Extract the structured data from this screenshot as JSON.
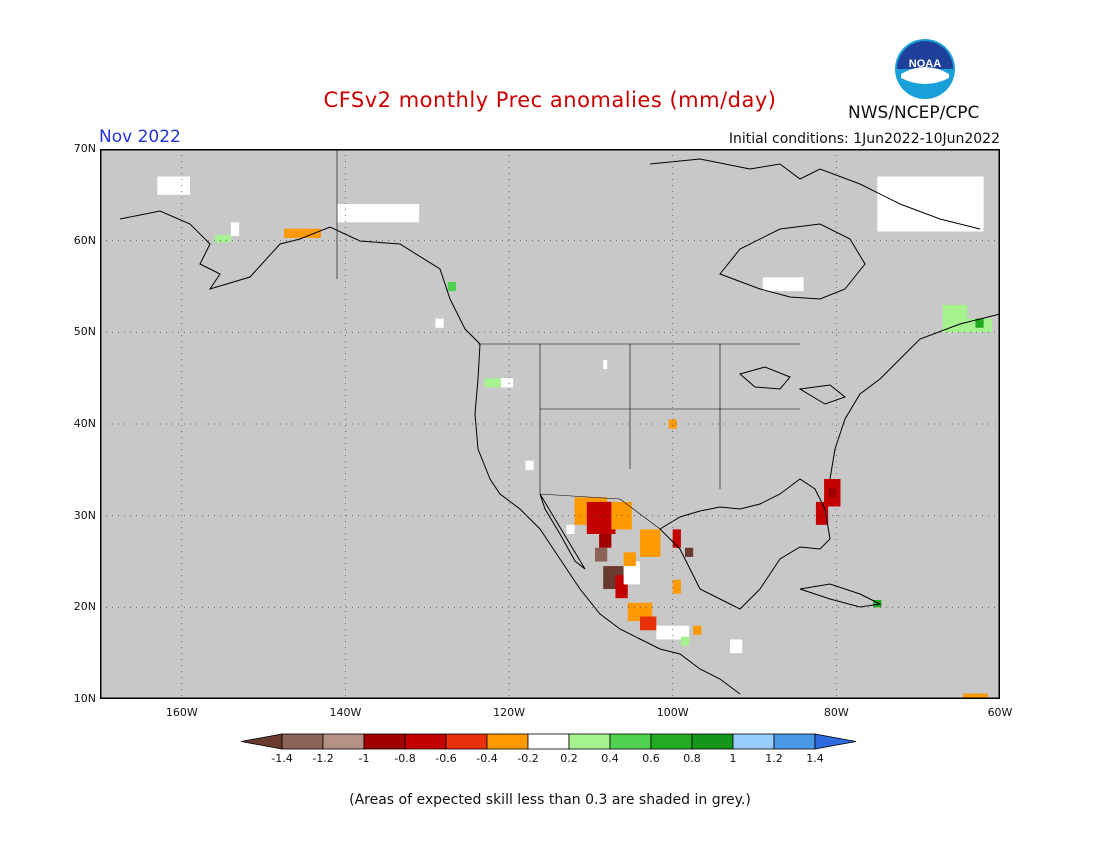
{
  "title": "CFSv2 monthly Prec anomalies (mm/day)",
  "period": "Nov 2022",
  "initial_conditions": "Initial conditions: 1Jun2022-10Jun2022",
  "agency": "NWS/NCEP/CPC",
  "logo": {
    "text": "NOAA",
    "icon": "noaa-logo-icon",
    "colors": {
      "ring": "#1aa0d8",
      "center": "#1e3f9a"
    }
  },
  "footnote": "(Areas of expected skill less than 0.3 are shaded in grey.)",
  "map": {
    "extent": {
      "lon": [
        -170,
        -60
      ],
      "lat": [
        10,
        70
      ]
    },
    "background": "#c8c8c8",
    "lat_labels": [
      {
        "value": 70,
        "text": "70N"
      },
      {
        "value": 60,
        "text": "60N"
      },
      {
        "value": 50,
        "text": "50N"
      },
      {
        "value": 40,
        "text": "40N"
      },
      {
        "value": 30,
        "text": "30N"
      },
      {
        "value": 20,
        "text": "20N"
      },
      {
        "value": 10,
        "text": "10N"
      }
    ],
    "lon_labels": [
      {
        "value": -160,
        "text": "160W"
      },
      {
        "value": -140,
        "text": "140W"
      },
      {
        "value": -120,
        "text": "120W"
      },
      {
        "value": -100,
        "text": "100W"
      },
      {
        "value": -80,
        "text": "80W"
      },
      {
        "value": -60,
        "text": "60W"
      }
    ]
  },
  "colorbar": {
    "colors": [
      "#6b3a2e",
      "#8c6356",
      "#b39285",
      "#a00000",
      "#c40000",
      "#e8300a",
      "#ff9900",
      "#ffffff",
      "#a6f28f",
      "#50d250",
      "#23aa23",
      "#15961b",
      "#99ccff",
      "#4a98e8",
      "#2f6be0"
    ],
    "labels": [
      "-1.4",
      "-1.2",
      "-1",
      "-0.8",
      "-0.6",
      "-0.4",
      "-0.2",
      "0.2",
      "0.4",
      "0.6",
      "0.8",
      "1",
      "1.2",
      "1.4"
    ]
  },
  "anomalies": [
    {
      "lon": [
        -112,
        -108
      ],
      "lat": [
        29,
        32
      ],
      "color": "#ff9900"
    },
    {
      "lon": [
        -110.5,
        -107
      ],
      "lat": [
        28,
        31.5
      ],
      "color": "#c40000"
    },
    {
      "lon": [
        -109,
        -107.5
      ],
      "lat": [
        26.5,
        28
      ],
      "color": "#a00000"
    },
    {
      "lon": [
        -109.5,
        -108
      ],
      "lat": [
        25,
        26.5
      ],
      "color": "#8c6356"
    },
    {
      "lon": [
        -107.5,
        -105
      ],
      "lat": [
        28.5,
        31.5
      ],
      "color": "#ff9900"
    },
    {
      "lon": [
        -108.5,
        -106
      ],
      "lat": [
        22,
        24.5
      ],
      "color": "#6b3a2e"
    },
    {
      "lon": [
        -107,
        -105.5
      ],
      "lat": [
        21,
        23.5
      ],
      "color": "#c40000"
    },
    {
      "lon": [
        -106,
        -104
      ],
      "lat": [
        22.5,
        25
      ],
      "color": "#ffffff"
    },
    {
      "lon": [
        -106,
        -104.5
      ],
      "lat": [
        24.5,
        26
      ],
      "color": "#ff9900"
    },
    {
      "lon": [
        -104,
        -101.5
      ],
      "lat": [
        25.5,
        28.5
      ],
      "color": "#ff9900"
    },
    {
      "lon": [
        -100,
        -99
      ],
      "lat": [
        26.5,
        28.5
      ],
      "color": "#c40000"
    },
    {
      "lon": [
        -98.5,
        -97.5
      ],
      "lat": [
        25.5,
        26.5
      ],
      "color": "#6b3a2e"
    },
    {
      "lon": [
        -100,
        -99
      ],
      "lat": [
        21.5,
        23
      ],
      "color": "#ff9900"
    },
    {
      "lon": [
        -105.5,
        -102.5
      ],
      "lat": [
        18.5,
        20.5
      ],
      "color": "#ff9900"
    },
    {
      "lon": [
        -104,
        -102
      ],
      "lat": [
        17.5,
        19
      ],
      "color": "#e8300a"
    },
    {
      "lon": [
        -102,
        -98
      ],
      "lat": [
        16.5,
        18
      ],
      "color": "#ffffff"
    },
    {
      "lon": [
        -97.5,
        -96.5
      ],
      "lat": [
        17,
        18
      ],
      "color": "#ff9900"
    },
    {
      "lon": [
        -81.5,
        -79.5
      ],
      "lat": [
        31,
        34
      ],
      "color": "#c40000"
    },
    {
      "lon": [
        -82.5,
        -81
      ],
      "lat": [
        29,
        31.5
      ],
      "color": "#c40000"
    },
    {
      "lon": [
        -81,
        -80
      ],
      "lat": [
        32,
        33
      ],
      "color": "#a00000"
    },
    {
      "lon": [
        -100.5,
        -99.5
      ],
      "lat": [
        39.5,
        40.5
      ],
      "color": "#ff9900"
    },
    {
      "lon": [
        -147.5,
        -143
      ],
      "lat": [
        60.3,
        61.3
      ],
      "color": "#ff9900"
    },
    {
      "lon": [
        -156,
        -154
      ],
      "lat": [
        59.8,
        60.6
      ],
      "color": "#a6f28f"
    },
    {
      "lon": [
        -123,
        -121
      ],
      "lat": [
        44,
        45
      ],
      "color": "#a6f28f"
    },
    {
      "lon": [
        -121,
        -119.5
      ],
      "lat": [
        44,
        45
      ],
      "color": "#ffffff"
    },
    {
      "lon": [
        -127.5,
        -126.5
      ],
      "lat": [
        54.5,
        55.5
      ],
      "color": "#50d250"
    },
    {
      "lon": [
        -67,
        -64
      ],
      "lat": [
        50,
        53
      ],
      "color": "#a6f28f"
    },
    {
      "lon": [
        -64,
        -61
      ],
      "lat": [
        50,
        51.5
      ],
      "color": "#a6f28f"
    },
    {
      "lon": [
        -63,
        -62
      ],
      "lat": [
        50.5,
        51.5
      ],
      "color": "#23aa23"
    },
    {
      "lon": [
        -75.5,
        -74.5
      ],
      "lat": [
        20,
        20.8
      ],
      "color": "#23aa23"
    },
    {
      "lon": [
        -99,
        -98
      ],
      "lat": [
        15.8,
        16.8
      ],
      "color": "#a6f28f"
    },
    {
      "lon": [
        -64.5,
        -61.5
      ],
      "lat": [
        10,
        10.6
      ],
      "color": "#ff9900"
    },
    {
      "lon": [
        -163,
        -159
      ],
      "lat": [
        65,
        67
      ],
      "color": "#ffffff"
    },
    {
      "lon": [
        -154,
        -153
      ],
      "lat": [
        60.5,
        62
      ],
      "color": "#ffffff"
    },
    {
      "lon": [
        -141,
        -131
      ],
      "lat": [
        62,
        64
      ],
      "color": "#ffffff"
    },
    {
      "lon": [
        -75,
        -62
      ],
      "lat": [
        61,
        67
      ],
      "color": "#ffffff"
    },
    {
      "lon": [
        -89,
        -84
      ],
      "lat": [
        54.5,
        56
      ],
      "color": "#ffffff"
    },
    {
      "lon": [
        -118,
        -117
      ],
      "lat": [
        35,
        36
      ],
      "color": "#ffffff"
    },
    {
      "lon": [
        -108.5,
        -108
      ],
      "lat": [
        46,
        47
      ],
      "color": "#ffffff"
    },
    {
      "lon": [
        -129,
        -128
      ],
      "lat": [
        50.5,
        51.5
      ],
      "color": "#ffffff"
    },
    {
      "lon": [
        -113,
        -112
      ],
      "lat": [
        28,
        29
      ],
      "color": "#ffffff"
    },
    {
      "lon": [
        -93,
        -91.5
      ],
      "lat": [
        15,
        16.5
      ],
      "color": "#ffffff"
    }
  ]
}
